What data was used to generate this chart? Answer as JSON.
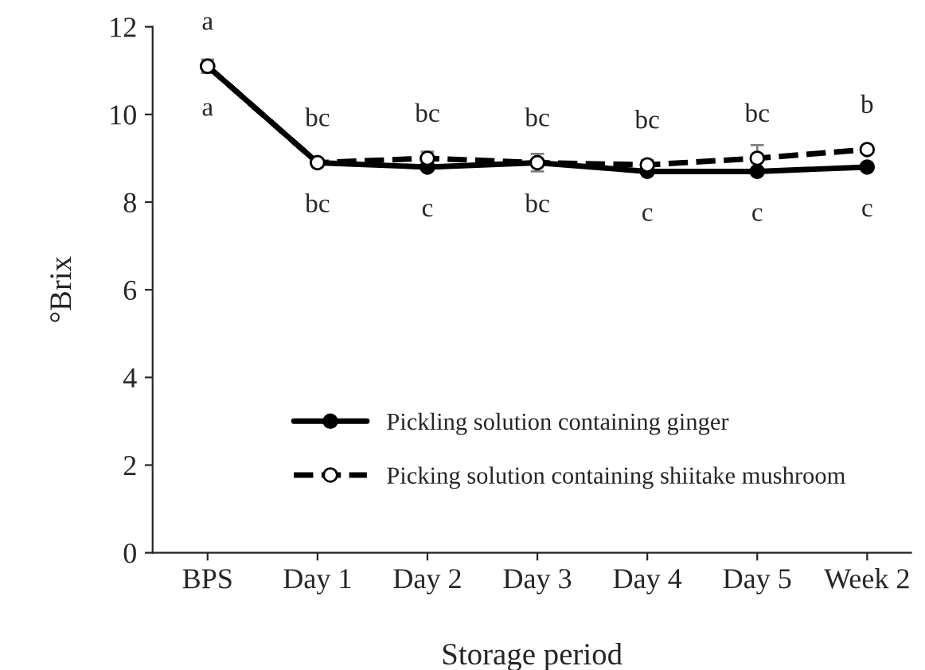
{
  "chart_data": {
    "type": "line",
    "xlabel": "Storage period",
    "ylabel": "°Brix",
    "categories": [
      "BPS",
      "Day 1",
      "Day 2",
      "Day 3",
      "Day 4",
      "Day 5",
      "Week 2"
    ],
    "series": [
      {
        "name": "Pickling solution containing ginger",
        "color": "#000000",
        "line_style": "solid",
        "values": [
          11.1,
          8.9,
          8.8,
          8.9,
          8.7,
          8.7,
          8.8
        ],
        "value_labels": [
          "a",
          "bc",
          "c",
          "bc",
          "c",
          "c",
          "c"
        ]
      },
      {
        "name": "Picking solution containing shiitake mushroom",
        "color": "#000000",
        "line_style": "dashed",
        "values": [
          11.1,
          8.9,
          9.0,
          8.9,
          8.85,
          9.0,
          9.2
        ],
        "errors": [
          0.15,
          0.05,
          0.15,
          0.2,
          0.1,
          0.3,
          null
        ],
        "value_labels": [
          "a",
          "bc",
          "bc",
          "bc",
          "bc",
          "bc",
          "b"
        ]
      }
    ],
    "marker": "circle",
    "ylim": [
      0,
      12
    ],
    "yticks": [
      0,
      2,
      4,
      6,
      8,
      10,
      12
    ],
    "grid": false,
    "legend": "lower center"
  }
}
